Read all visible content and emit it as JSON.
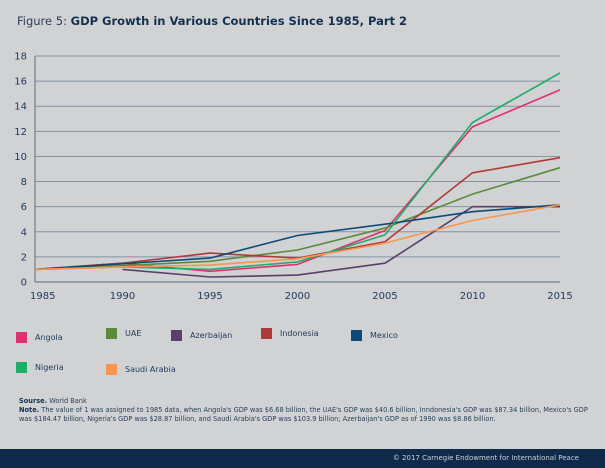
{
  "figure": {
    "label": "Figure 5:",
    "title": "GDP Growth in Various Countries Since 1985, Part 2"
  },
  "chart_data": {
    "type": "line",
    "title": "GDP Growth in Various Countries Since 1985, Part 2",
    "xlabel": "",
    "ylabel": "",
    "x": [
      1985,
      1990,
      1995,
      2000,
      2005,
      2010,
      2015
    ],
    "xticks": [
      "1985",
      "1990",
      "1995",
      "2000",
      "2005",
      "2010",
      "2015"
    ],
    "yticks": [
      "0",
      "2",
      "4",
      "6",
      "8",
      "10",
      "12",
      "14",
      "16",
      "18"
    ],
    "ylim": [
      0,
      18
    ],
    "xlim": [
      1985,
      2015
    ],
    "grid": true,
    "legend_position": "bottom",
    "series": [
      {
        "name": "Angola",
        "color": "#e0306f",
        "values": [
          1,
          1.5,
          0.85,
          1.4,
          4.1,
          12.35,
          15.3
        ]
      },
      {
        "name": "UAE",
        "color": "#5c8a3c",
        "values": [
          1,
          1.3,
          1.65,
          2.55,
          4.3,
          7.0,
          9.1
        ]
      },
      {
        "name": "Azerbaijan",
        "color": "#5b3f6b",
        "values": [
          null,
          1.0,
          0.4,
          0.55,
          1.5,
          6.0,
          6.0
        ]
      },
      {
        "name": "Indonesia",
        "color": "#b03a3a",
        "values": [
          1,
          1.5,
          2.3,
          1.9,
          3.2,
          8.7,
          9.9
        ]
      },
      {
        "name": "Mexico",
        "color": "#0e4a78",
        "values": [
          1,
          1.45,
          1.9,
          3.7,
          4.6,
          5.6,
          6.15
        ]
      },
      {
        "name": "Nigeria",
        "color": "#1fae6a",
        "values": [
          1,
          1.2,
          1.0,
          1.6,
          3.75,
          12.7,
          16.65
        ]
      },
      {
        "name": "Saudi Arabia",
        "color": "#f7964f",
        "values": [
          1,
          1.2,
          1.35,
          1.85,
          3.1,
          4.9,
          6.15
        ]
      }
    ]
  },
  "notes": {
    "source_label": "Sourse.",
    "source_text": "World Bank",
    "note_label": "Note.",
    "note_text": "The value of 1 was  assigned to 1985 data, when Angola's GDP was $6.68 billion, the UAE's GDP was $40.6 billion, Inndonesia's GDP was $87.34 billion, Mexico's GDP was $184.47 billion, Nigeria's GDP was $28.87 billion, and Saudi Arabia's GDP was $103.9 billion; Azerbaijan's GDP as of 1990 was $8.86 billion."
  },
  "footer": {
    "copyright": "© 2017 Carnegie Endowment for International Peace"
  }
}
